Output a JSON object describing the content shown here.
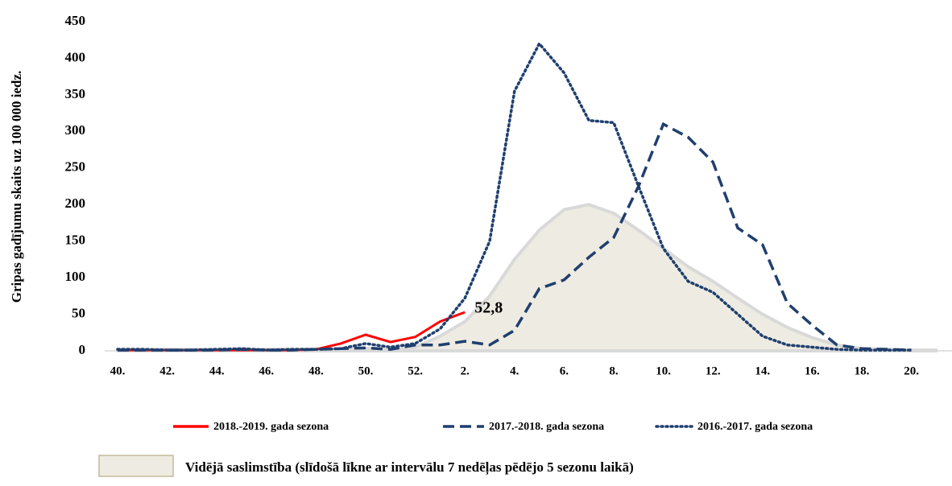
{
  "chart_data": {
    "type": "line",
    "y_label": "Gripas gadījumu skaits uz 100 000 iedz.",
    "categories": [
      "40.",
      null,
      "42.",
      null,
      "44.",
      null,
      "46.",
      null,
      "48.",
      null,
      "50.",
      null,
      "52.",
      null,
      "2.",
      null,
      "4.",
      null,
      "6.",
      null,
      "8.",
      null,
      "10.",
      null,
      "12.",
      null,
      "14.",
      null,
      "16.",
      null,
      "18.",
      null,
      "20.",
      null
    ],
    "ylim": [
      0,
      450
    ],
    "yticks": [
      0,
      50,
      100,
      150,
      200,
      250,
      300,
      350,
      400,
      450
    ],
    "grid": false,
    "series": [
      {
        "name": "2018.-2019. gada sezona",
        "color": "#ff0000",
        "style": "solid",
        "values": [
          1,
          1,
          1,
          1,
          1,
          1,
          1,
          1,
          2,
          10,
          22,
          12,
          19,
          40,
          52.8,
          null,
          null,
          null,
          null,
          null,
          null,
          null,
          null,
          null,
          null,
          null,
          null,
          null,
          null,
          null,
          null,
          null,
          null,
          null
        ],
        "value_labels": [
          null,
          null,
          null,
          null,
          null,
          null,
          null,
          null,
          null,
          null,
          null,
          null,
          null,
          null,
          "52,8",
          null,
          null,
          null,
          null,
          null,
          null,
          null,
          null,
          null,
          null,
          null,
          null,
          null,
          null,
          null,
          null,
          null,
          null,
          null
        ]
      },
      {
        "name": "2017.-2018. gada sezona",
        "color": "#1f3f6e",
        "style": "dashed",
        "values": [
          1,
          1,
          1,
          1,
          1,
          2,
          1,
          1,
          2,
          3,
          4,
          2,
          8,
          8,
          13,
          8,
          28,
          85,
          97,
          128,
          155,
          225,
          310,
          292,
          258,
          168,
          145,
          65,
          35,
          8,
          3,
          2,
          1,
          null
        ]
      },
      {
        "name": "2016.-2017. gada sezona",
        "color": "#1f3f6e",
        "style": "dotted",
        "values": [
          2,
          2,
          1,
          1,
          2,
          3,
          1,
          2,
          2,
          3,
          10,
          5,
          10,
          30,
          72,
          150,
          355,
          420,
          380,
          315,
          312,
          225,
          140,
          95,
          80,
          50,
          20,
          8,
          5,
          2,
          1,
          1,
          1,
          null
        ]
      },
      {
        "name": "Vidējā saslimstība (slīdošā līkne ar intervālu 7 nedēļas pēdējo 5 sezonu laikā)",
        "color": "#eeebe2",
        "style": "area",
        "values": [
          2,
          2,
          2,
          2,
          2,
          2,
          2,
          2,
          2,
          2,
          3,
          3,
          5,
          20,
          40,
          75,
          125,
          165,
          193,
          200,
          188,
          165,
          140,
          115,
          95,
          72,
          50,
          32,
          18,
          8,
          3,
          2,
          1,
          1
        ]
      }
    ]
  }
}
